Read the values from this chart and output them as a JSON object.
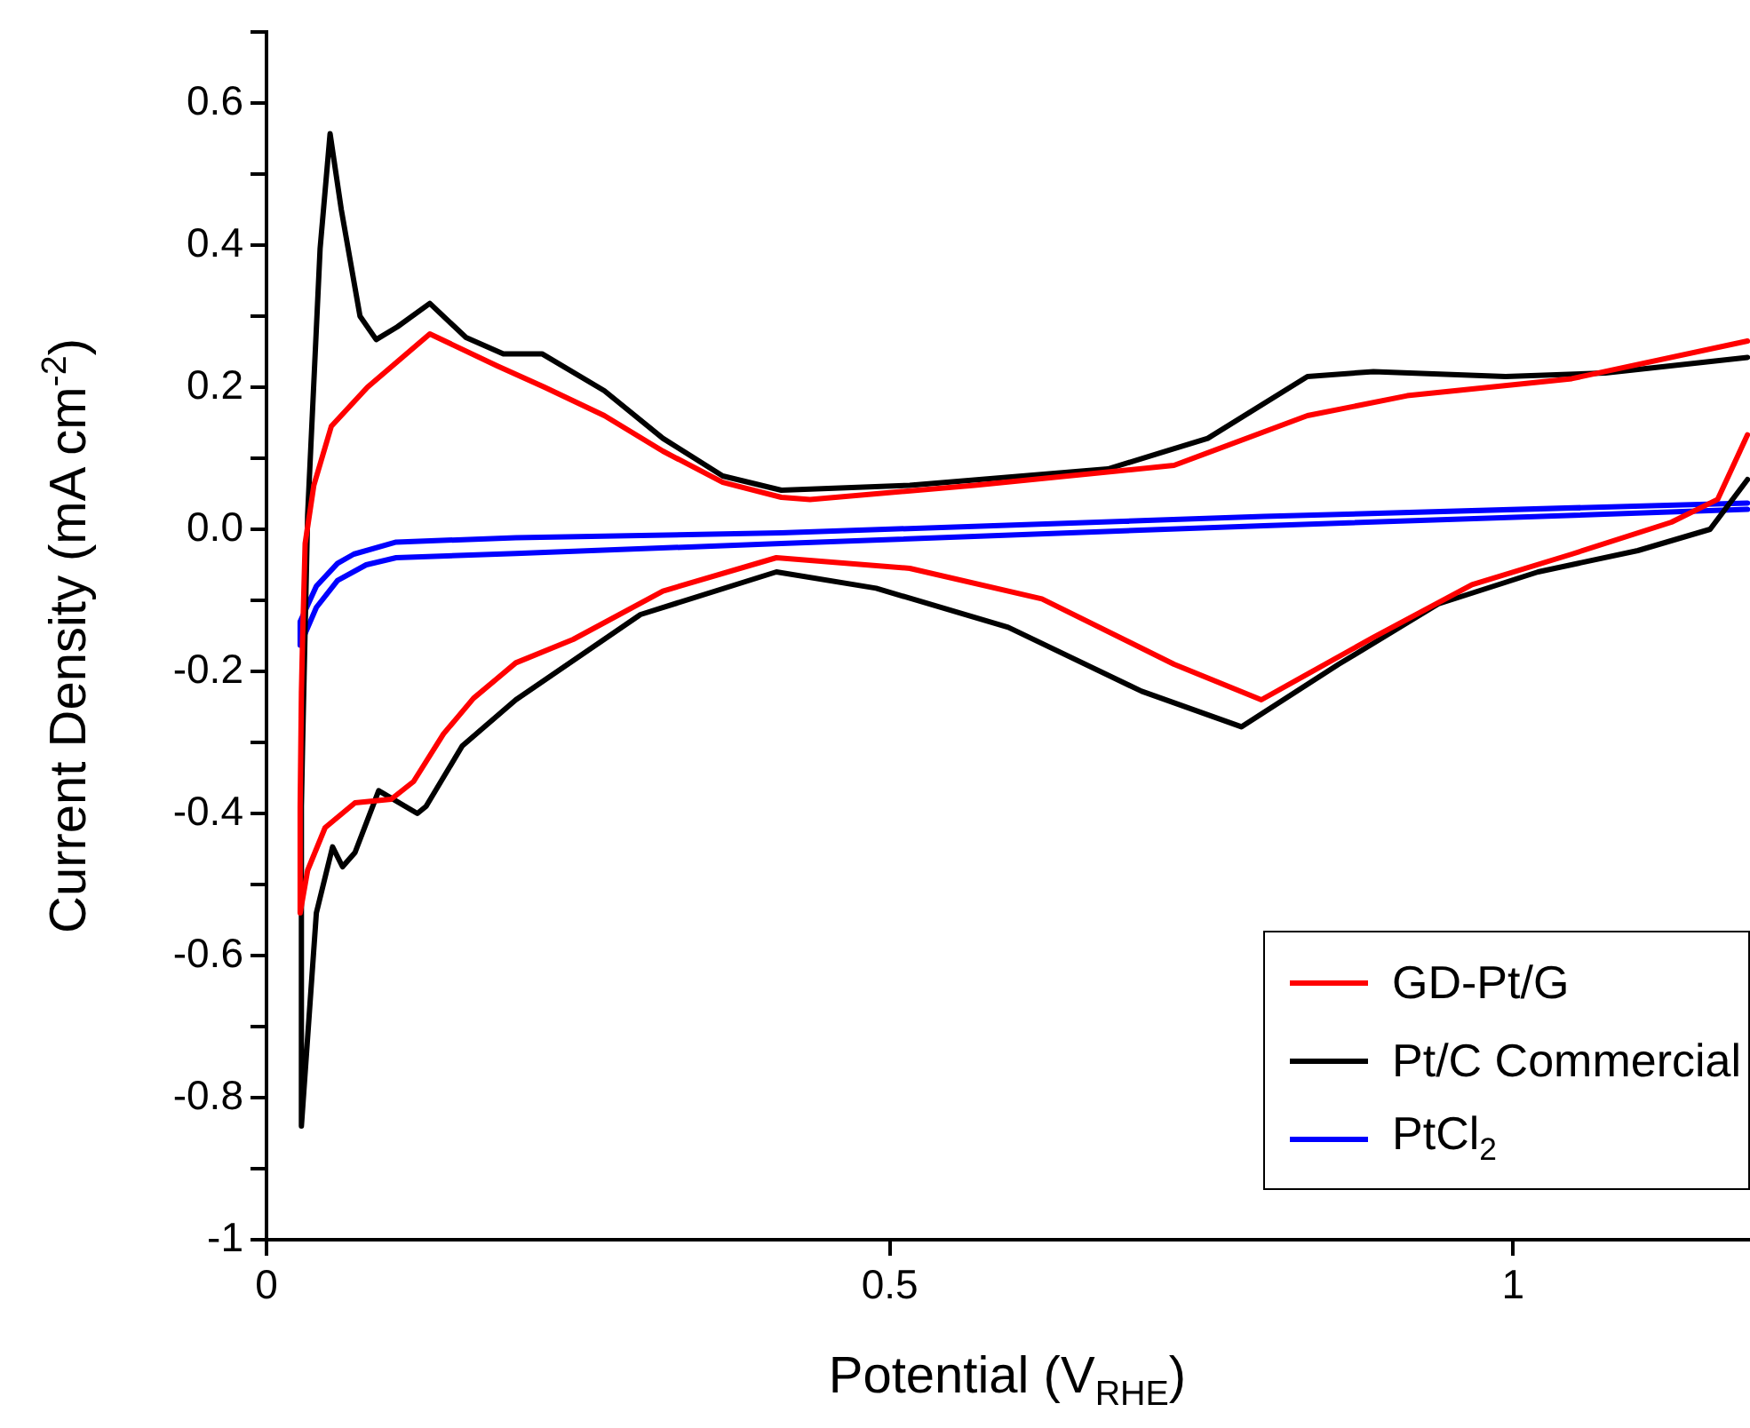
{
  "chart_data": {
    "type": "line",
    "xlabel": "Potential (V$_{RHE}$)",
    "ylabel": "Current Density (mA cm$^{-2}$)",
    "xlim": [
      0,
      1.19
    ],
    "ylim": [
      -1,
      0.7
    ],
    "xticks": [
      0,
      0.5,
      1
    ],
    "yticks": [
      {
        "value": -1,
        "label": "-1"
      },
      {
        "value": -0.9,
        "label": null
      },
      {
        "value": -0.8,
        "label": "-0.8"
      },
      {
        "value": -0.7,
        "label": null
      },
      {
        "value": -0.6,
        "label": "-0.6"
      },
      {
        "value": -0.5,
        "label": null
      },
      {
        "value": -0.4,
        "label": "-0.4"
      },
      {
        "value": -0.3,
        "label": null
      },
      {
        "value": -0.2,
        "label": "-0.2"
      },
      {
        "value": -0.1,
        "label": null
      },
      {
        "value": 0,
        "label": "0.0"
      },
      {
        "value": 0.1,
        "label": null
      },
      {
        "value": 0.2,
        "label": "0.2"
      },
      {
        "value": 0.3,
        "label": null
      },
      {
        "value": 0.4,
        "label": "0.4"
      },
      {
        "value": 0.5,
        "label": null
      },
      {
        "value": 0.6,
        "label": "0.6"
      },
      {
        "value": 0.7,
        "label": null
      }
    ],
    "legend": "bottom right",
    "marker": "none",
    "series": [
      {
        "name": "GD-Pt/G",
        "color": "#ff0000",
        "x": [
          1.188,
          1.047,
          0.915,
          0.835,
          0.728,
          0.568,
          0.436,
          0.413,
          0.366,
          0.318,
          0.271,
          0.223,
          0.185,
          0.131,
          0.081,
          0.052,
          0.038,
          0.031,
          0.029,
          0.028,
          0.027,
          0.027,
          0.033,
          0.047,
          0.071,
          0.1,
          0.118,
          0.142,
          0.166,
          0.2,
          0.246,
          0.318,
          0.409,
          0.516,
          0.622,
          0.728,
          0.798,
          0.887,
          0.967,
          1.047,
          1.127,
          1.164,
          1.188
        ],
        "values": [
          0.265,
          0.212,
          0.188,
          0.16,
          0.09,
          0.062,
          0.042,
          0.045,
          0.066,
          0.11,
          0.16,
          0.2,
          0.23,
          0.275,
          0.2,
          0.145,
          0.062,
          -0.02,
          -0.15,
          -0.23,
          -0.39,
          -0.54,
          -0.48,
          -0.42,
          -0.385,
          -0.38,
          -0.355,
          -0.288,
          -0.238,
          -0.188,
          -0.155,
          -0.087,
          -0.04,
          -0.055,
          -0.098,
          -0.19,
          -0.24,
          -0.153,
          -0.078,
          -0.035,
          0.01,
          0.042,
          0.133
        ]
      },
      {
        "name": "Pt/C Commercial",
        "color": "#000000",
        "x": [
          1.188,
          1.074,
          0.994,
          0.888,
          0.835,
          0.755,
          0.675,
          0.516,
          0.413,
          0.366,
          0.318,
          0.271,
          0.221,
          0.19,
          0.16,
          0.131,
          0.105,
          0.088,
          0.075,
          0.06,
          0.051,
          0.043,
          0.033,
          0.029,
          0.028,
          0.028,
          0.04,
          0.053,
          0.061,
          0.071,
          0.09,
          0.121,
          0.128,
          0.157,
          0.2,
          0.3,
          0.409,
          0.489,
          0.595,
          0.702,
          0.782,
          0.86,
          0.94,
          1.02,
          1.1,
          1.158,
          1.188
        ],
        "values": [
          0.242,
          0.22,
          0.215,
          0.222,
          0.215,
          0.128,
          0.085,
          0.062,
          0.055,
          0.075,
          0.128,
          0.195,
          0.247,
          0.247,
          0.27,
          0.318,
          0.285,
          0.267,
          0.3,
          0.45,
          0.557,
          0.395,
          0.02,
          -0.3,
          -0.39,
          -0.84,
          -0.54,
          -0.447,
          -0.475,
          -0.455,
          -0.368,
          -0.4,
          -0.39,
          -0.305,
          -0.24,
          -0.12,
          -0.06,
          -0.083,
          -0.138,
          -0.228,
          -0.278,
          -0.19,
          -0.105,
          -0.06,
          -0.03,
          0.0,
          0.07
        ]
      },
      {
        "name": "PtCl$_{2}$",
        "color": "#0000ff",
        "x": [
          1.188,
          0.8,
          0.413,
          0.2,
          0.104,
          0.07,
          0.057,
          0.04,
          0.027,
          0.027,
          0.04,
          0.057,
          0.08,
          0.104,
          0.2,
          0.413,
          0.8,
          1.188
        ],
        "values": [
          0.037,
          0.018,
          -0.005,
          -0.012,
          -0.018,
          -0.035,
          -0.048,
          -0.08,
          -0.13,
          -0.163,
          -0.11,
          -0.072,
          -0.05,
          -0.04,
          -0.034,
          -0.02,
          0.005,
          0.028
        ]
      }
    ]
  }
}
